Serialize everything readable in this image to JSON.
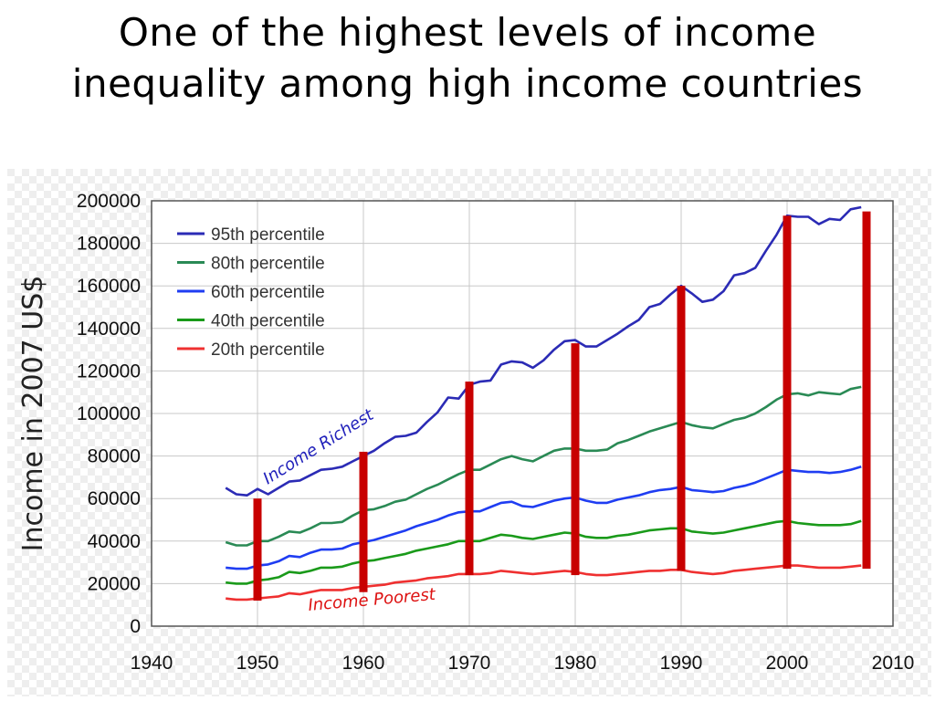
{
  "slide": {
    "title_line1": "One of the highest levels of income",
    "title_line2": "inequality among high income countries"
  },
  "chart_data": {
    "type": "line",
    "title": "",
    "xlabel": "",
    "ylabel": "Income in 2007 US$",
    "xlim": [
      1940,
      2010
    ],
    "ylim": [
      0,
      200000
    ],
    "x_ticks": [
      1940,
      1950,
      1960,
      1970,
      1980,
      1990,
      2000,
      2010
    ],
    "y_ticks": [
      0,
      20000,
      40000,
      60000,
      80000,
      100000,
      120000,
      140000,
      160000,
      180000,
      200000
    ],
    "grid": true,
    "legend_position": "top-left",
    "x": [
      1947,
      1948,
      1949,
      1950,
      1951,
      1952,
      1953,
      1954,
      1955,
      1956,
      1957,
      1958,
      1959,
      1960,
      1961,
      1962,
      1963,
      1964,
      1965,
      1966,
      1967,
      1968,
      1969,
      1970,
      1971,
      1972,
      1973,
      1974,
      1975,
      1976,
      1977,
      1978,
      1979,
      1980,
      1981,
      1982,
      1983,
      1984,
      1985,
      1986,
      1987,
      1988,
      1989,
      1990,
      1991,
      1992,
      1993,
      1994,
      1995,
      1996,
      1997,
      1998,
      1999,
      2000,
      2001,
      2002,
      2003,
      2004,
      2005,
      2006,
      2007
    ],
    "series": [
      {
        "name": "95th percentile",
        "color": "#2b2bb5",
        "values": [
          65000,
          62000,
          61500,
          64500,
          62000,
          65000,
          68000,
          68500,
          71000,
          73500,
          74000,
          75000,
          77500,
          80000,
          82500,
          86000,
          89000,
          89500,
          91000,
          96000,
          100500,
          107500,
          107000,
          113500,
          115000,
          115500,
          123000,
          124500,
          124000,
          121500,
          125000,
          130000,
          134000,
          134500,
          131500,
          131500,
          134500,
          137500,
          141000,
          144000,
          150000,
          151500,
          156000,
          160000,
          156500,
          152500,
          153500,
          157500,
          165000,
          166000,
          168500,
          176500,
          184000,
          193000,
          192500,
          192500,
          189000,
          191500,
          191000,
          196000,
          197000
        ]
      },
      {
        "name": "80th percentile",
        "color": "#2a8a55",
        "values": [
          39500,
          38000,
          38000,
          40000,
          40000,
          42000,
          44500,
          44000,
          46000,
          48500,
          48500,
          49000,
          52000,
          54500,
          55000,
          56500,
          58500,
          59500,
          62000,
          64500,
          66500,
          69000,
          71500,
          73500,
          73500,
          76000,
          78500,
          80000,
          78500,
          77500,
          80000,
          82500,
          83500,
          83500,
          82500,
          82500,
          83000,
          86000,
          87500,
          89500,
          91500,
          93000,
          94500,
          96000,
          94500,
          93500,
          93000,
          95000,
          97000,
          98000,
          100000,
          103000,
          106500,
          109000,
          109500,
          108500,
          110000,
          109500,
          109000,
          111500,
          112500
        ]
      },
      {
        "name": "60th percentile",
        "color": "#1f3df2",
        "values": [
          27500,
          27000,
          27000,
          28500,
          29000,
          30500,
          33000,
          32500,
          34500,
          36000,
          36000,
          36500,
          38500,
          39500,
          40500,
          42000,
          43500,
          45000,
          47000,
          48500,
          50000,
          52000,
          53500,
          54000,
          54000,
          56000,
          58000,
          58500,
          56500,
          56000,
          57500,
          59000,
          60000,
          60500,
          59000,
          58000,
          58000,
          59500,
          60500,
          61500,
          63000,
          64000,
          64500,
          65500,
          64000,
          63500,
          63000,
          63500,
          65000,
          66000,
          67500,
          69500,
          71500,
          73500,
          73000,
          72500,
          72500,
          72000,
          72500,
          73500,
          75000
        ]
      },
      {
        "name": "40th percentile",
        "color": "#1a9a1a",
        "values": [
          20500,
          20000,
          20000,
          21500,
          22000,
          23000,
          25500,
          25000,
          26000,
          27500,
          27500,
          28000,
          29500,
          30500,
          31000,
          32000,
          33000,
          34000,
          35500,
          36500,
          37500,
          38500,
          40000,
          40000,
          40000,
          41500,
          43000,
          42500,
          41500,
          41000,
          42000,
          43000,
          44000,
          43500,
          42000,
          41500,
          41500,
          42500,
          43000,
          44000,
          45000,
          45500,
          46000,
          46000,
          44500,
          44000,
          43500,
          44000,
          45000,
          46000,
          47000,
          48000,
          49000,
          49500,
          48500,
          48000,
          47500,
          47500,
          47500,
          48000,
          49500
        ]
      },
      {
        "name": "20th percentile",
        "color": "#ef3030",
        "values": [
          13000,
          12500,
          12500,
          13000,
          13500,
          14000,
          15500,
          15000,
          16000,
          17000,
          17000,
          17000,
          18000,
          18500,
          19000,
          19500,
          20500,
          21000,
          21500,
          22500,
          23000,
          23500,
          24500,
          24500,
          24500,
          25000,
          26000,
          25500,
          25000,
          24500,
          25000,
          25500,
          26000,
          25500,
          24500,
          24000,
          24000,
          24500,
          25000,
          25500,
          26000,
          26000,
          26500,
          26500,
          25500,
          25000,
          24500,
          25000,
          26000,
          26500,
          27000,
          27500,
          28000,
          28500,
          28500,
          28000,
          27500,
          27500,
          27500,
          28000,
          28500
        ]
      }
    ],
    "gap_bars": [
      {
        "x": 1950,
        "low": 12000,
        "high": 60000
      },
      {
        "x": 1960,
        "low": 16000,
        "high": 82000
      },
      {
        "x": 1970,
        "low": 24000,
        "high": 115000
      },
      {
        "x": 1980,
        "low": 24000,
        "high": 133000
      },
      {
        "x": 1990,
        "low": 26000,
        "high": 160000
      },
      {
        "x": 2000,
        "low": 27000,
        "high": 193000
      },
      {
        "x": 2007.5,
        "low": 27000,
        "high": 195000
      }
    ],
    "gap_bar_color": "#c80000",
    "annotations": [
      {
        "text": "Income Richest",
        "color": "#2222bb"
      },
      {
        "text": "Income Poorest",
        "color": "#dd1111"
      }
    ]
  }
}
